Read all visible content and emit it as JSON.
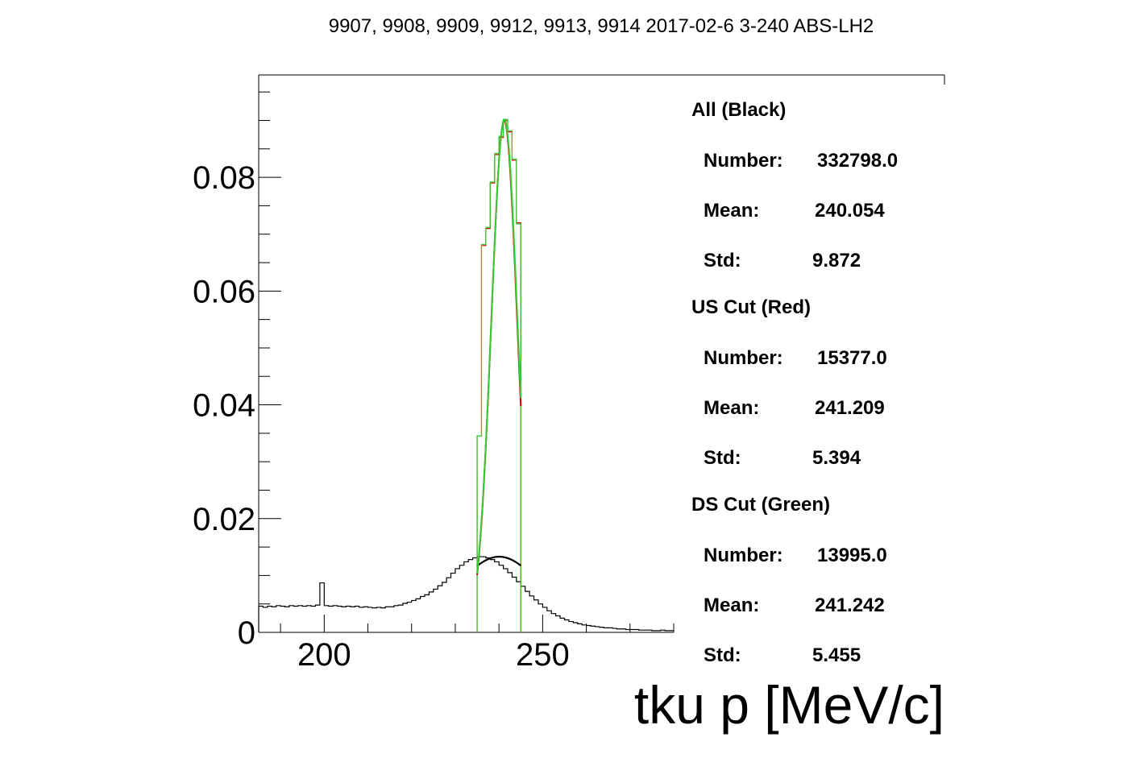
{
  "chart_data": {
    "type": "histogram",
    "title": "9907, 9908, 9909, 9912, 9913, 9914 2017-02-6 3-240 ABS-LH2",
    "xlabel": "tku p [MeV/c]",
    "ylabel": "",
    "xlim": [
      185,
      280
    ],
    "ylim": [
      0,
      0.098
    ],
    "x_ticks": [
      200,
      250
    ],
    "y_ticks": [
      0,
      0.02,
      0.04,
      0.06,
      0.08
    ],
    "x_tick_labels": [
      "200",
      "250"
    ],
    "y_tick_labels": [
      "0",
      "0.02",
      "0.04",
      "0.06",
      "0.08"
    ],
    "grid": false,
    "legend": "right",
    "bin_width": 1,
    "series": [
      {
        "key": "all",
        "color": "#000000",
        "x": [
          185,
          186,
          187,
          188,
          189,
          190,
          191,
          192,
          193,
          194,
          195,
          196,
          197,
          198,
          199,
          200,
          201,
          202,
          203,
          204,
          205,
          206,
          207,
          208,
          209,
          210,
          211,
          212,
          213,
          214,
          215,
          216,
          217,
          218,
          219,
          220,
          221,
          222,
          223,
          224,
          225,
          226,
          227,
          228,
          229,
          230,
          231,
          232,
          233,
          234,
          235,
          236,
          237,
          238,
          239,
          240,
          241,
          242,
          243,
          244,
          245,
          246,
          247,
          248,
          249,
          250,
          251,
          252,
          253,
          254,
          255,
          256,
          257,
          258,
          259,
          260,
          261,
          262,
          263,
          264,
          265,
          266,
          267,
          268,
          269,
          270,
          271,
          272,
          273,
          274,
          275,
          276,
          277,
          278,
          279
        ],
        "values": [
          0.0046,
          0.0044,
          0.0046,
          0.0045,
          0.0047,
          0.0046,
          0.0045,
          0.0047,
          0.0046,
          0.0047,
          0.0046,
          0.0047,
          0.0046,
          0.0048,
          0.0087,
          0.0047,
          0.0046,
          0.0047,
          0.0046,
          0.0045,
          0.0046,
          0.0045,
          0.0046,
          0.0044,
          0.0045,
          0.0044,
          0.0043,
          0.0044,
          0.0043,
          0.0045,
          0.0045,
          0.0047,
          0.0048,
          0.0051,
          0.0053,
          0.0056,
          0.0059,
          0.0063,
          0.0066,
          0.0071,
          0.0076,
          0.0082,
          0.0088,
          0.0096,
          0.0104,
          0.0112,
          0.0118,
          0.0124,
          0.0128,
          0.0131,
          0.0133,
          0.0133,
          0.0131,
          0.0128,
          0.0124,
          0.0118,
          0.0112,
          0.0105,
          0.0097,
          0.0089,
          0.0081,
          0.0072,
          0.0064,
          0.0057,
          0.005,
          0.0044,
          0.0038,
          0.0033,
          0.0029,
          0.0025,
          0.0022,
          0.0019,
          0.0017,
          0.0015,
          0.0013,
          0.0012,
          0.0011,
          0.001,
          0.0009,
          0.0008,
          0.0008,
          0.0007,
          0.0006,
          0.0006,
          0.0005,
          0.0005,
          0.0005,
          0.0004,
          0.0004,
          0.0004,
          0.0003,
          0.0003,
          0.0004,
          0.0003,
          0.0003
        ]
      },
      {
        "key": "us_cut",
        "color": "#cc0000",
        "x": [
          235,
          236,
          237,
          238,
          239,
          240,
          241,
          242,
          243,
          244
        ],
        "values": [
          0.0345,
          0.068,
          0.071,
          0.079,
          0.084,
          0.087,
          0.09,
          0.088,
          0.083,
          0.072
        ]
      },
      {
        "key": "ds_cut",
        "color": "#33cc33",
        "x": [
          235,
          236,
          237,
          238,
          239,
          240,
          241,
          242,
          243,
          244
        ],
        "values": [
          0.0345,
          0.0682,
          0.0712,
          0.0792,
          0.0842,
          0.0872,
          0.0902,
          0.0882,
          0.0832,
          0.0718
        ]
      }
    ],
    "fits": [
      {
        "key": "all_fit",
        "color": "#000000",
        "amplitude": 0.0133,
        "mean": 240.054,
        "sigma": 9.872,
        "range": [
          235,
          245
        ]
      },
      {
        "key": "us_fit",
        "color": "#cc0000",
        "amplitude": 0.09,
        "mean": 241.209,
        "sigma": 5.394,
        "range": [
          235,
          245
        ]
      },
      {
        "key": "ds_fit",
        "color": "#33cc33",
        "amplitude": 0.0902,
        "mean": 241.242,
        "sigma": 5.455,
        "range": [
          235,
          245
        ]
      }
    ],
    "stats": [
      {
        "header": "All (Black)",
        "rows": [
          {
            "label": "Number:",
            "value": "332798.0"
          },
          {
            "label": "Mean:",
            "value": "240.054"
          },
          {
            "label": "Std:",
            "value": "9.872"
          }
        ]
      },
      {
        "header": "US Cut (Red)",
        "rows": [
          {
            "label": "Number:",
            "value": "15377.0"
          },
          {
            "label": "Mean:",
            "value": "241.209"
          },
          {
            "label": "Std:",
            "value": "5.394"
          }
        ]
      },
      {
        "header": "DS Cut (Green)",
        "rows": [
          {
            "label": "Number:",
            "value": "13995.0"
          },
          {
            "label": "Mean:",
            "value": "241.242"
          },
          {
            "label": "Std:",
            "value": "5.455"
          }
        ]
      }
    ]
  }
}
